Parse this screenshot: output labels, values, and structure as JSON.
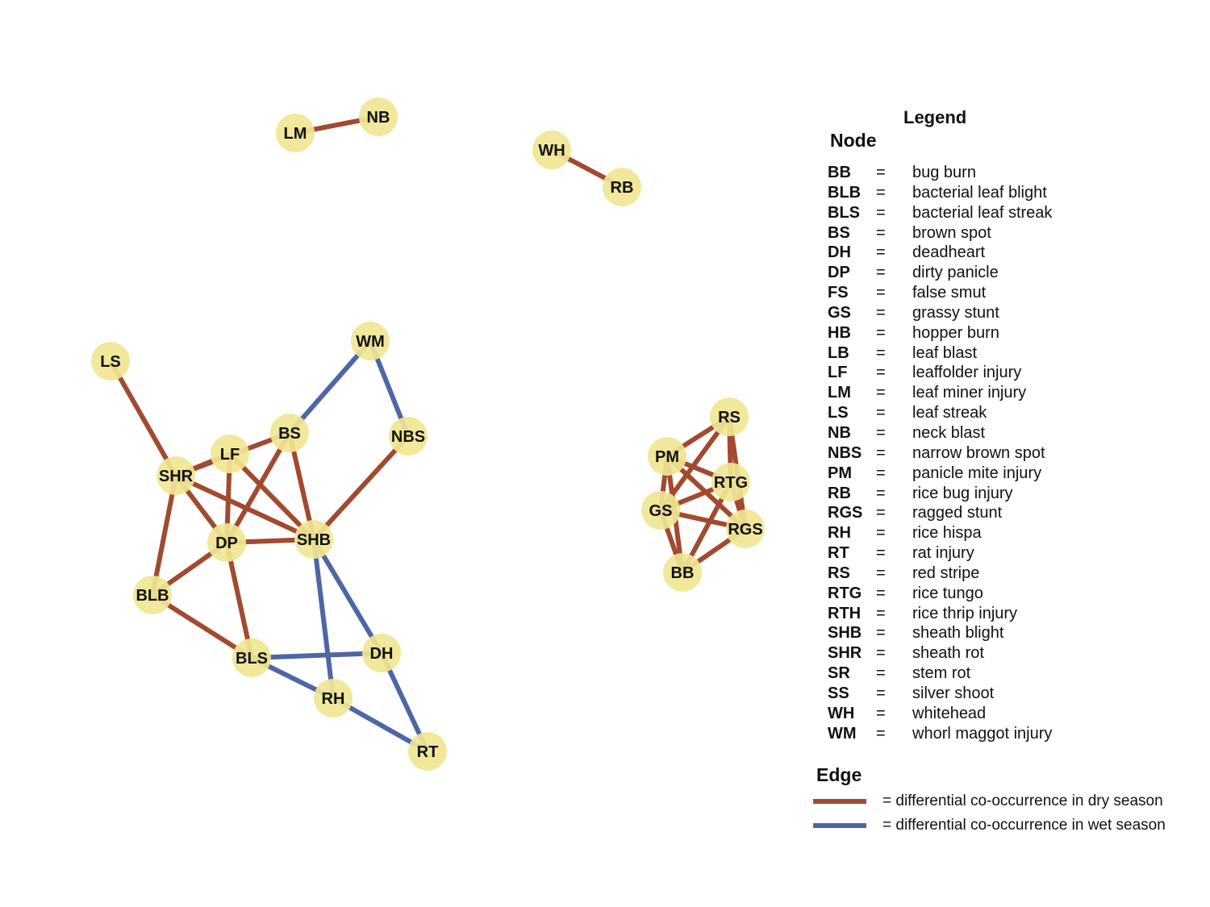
{
  "colors": {
    "dry_edge": "#a24a2f",
    "wet_edge": "#4f66a6",
    "node_fill": "#f0e694",
    "label": "#111111"
  },
  "nodes": [
    {
      "id": "LM"
    },
    {
      "id": "NB"
    },
    {
      "id": "WH"
    },
    {
      "id": "RB"
    },
    {
      "id": "LS"
    },
    {
      "id": "WM"
    },
    {
      "id": "LF"
    },
    {
      "id": "BS"
    },
    {
      "id": "NBS"
    },
    {
      "id": "SHR"
    },
    {
      "id": "DP"
    },
    {
      "id": "SHB"
    },
    {
      "id": "BLB"
    },
    {
      "id": "BLS"
    },
    {
      "id": "DH"
    },
    {
      "id": "RH"
    },
    {
      "id": "RT"
    },
    {
      "id": "RS"
    },
    {
      "id": "PM"
    },
    {
      "id": "RTG"
    },
    {
      "id": "GS"
    },
    {
      "id": "RGS"
    },
    {
      "id": "BB"
    }
  ],
  "edges": [
    {
      "from": "LM",
      "to": "NB",
      "season": "dry"
    },
    {
      "from": "WH",
      "to": "RB",
      "season": "dry"
    },
    {
      "from": "LS",
      "to": "SHR",
      "season": "dry"
    },
    {
      "from": "SHR",
      "to": "LF",
      "season": "dry"
    },
    {
      "from": "SHR",
      "to": "BS",
      "season": "dry"
    },
    {
      "from": "SHR",
      "to": "DP",
      "season": "dry"
    },
    {
      "from": "SHR",
      "to": "SHB",
      "season": "dry"
    },
    {
      "from": "SHR",
      "to": "BLB",
      "season": "dry"
    },
    {
      "from": "LF",
      "to": "DP",
      "season": "dry"
    },
    {
      "from": "LF",
      "to": "SHB",
      "season": "dry"
    },
    {
      "from": "BS",
      "to": "DP",
      "season": "dry"
    },
    {
      "from": "BS",
      "to": "SHB",
      "season": "dry"
    },
    {
      "from": "NBS",
      "to": "SHB",
      "season": "dry"
    },
    {
      "from": "DP",
      "to": "SHB",
      "season": "dry"
    },
    {
      "from": "DP",
      "to": "BLB",
      "season": "dry"
    },
    {
      "from": "DP",
      "to": "BLS",
      "season": "dry"
    },
    {
      "from": "BLB",
      "to": "BLS",
      "season": "dry"
    },
    {
      "from": "WM",
      "to": "BS",
      "season": "wet"
    },
    {
      "from": "WM",
      "to": "NBS",
      "season": "wet"
    },
    {
      "from": "SHB",
      "to": "DH",
      "season": "wet"
    },
    {
      "from": "SHB",
      "to": "RH",
      "season": "wet"
    },
    {
      "from": "BLS",
      "to": "DH",
      "season": "wet"
    },
    {
      "from": "BLS",
      "to": "RH",
      "season": "wet"
    },
    {
      "from": "RH",
      "to": "RT",
      "season": "wet"
    },
    {
      "from": "DH",
      "to": "RT",
      "season": "wet"
    },
    {
      "from": "RS",
      "to": "RTG",
      "season": "dry"
    },
    {
      "from": "RS",
      "to": "RGS",
      "season": "dry"
    },
    {
      "from": "RS",
      "to": "GS",
      "season": "dry"
    },
    {
      "from": "PM",
      "to": "RGS",
      "season": "dry"
    },
    {
      "from": "PM",
      "to": "BB",
      "season": "dry"
    },
    {
      "from": "PM",
      "to": "GS",
      "season": "dry"
    },
    {
      "from": "PM",
      "to": "RS",
      "season": "dry"
    },
    {
      "from": "PM",
      "to": "RTG",
      "season": "dry"
    },
    {
      "from": "GS",
      "to": "RTG",
      "season": "dry"
    },
    {
      "from": "GS",
      "to": "RGS",
      "season": "dry"
    },
    {
      "from": "GS",
      "to": "BB",
      "season": "dry"
    },
    {
      "from": "BB",
      "to": "RTG",
      "season": "dry"
    },
    {
      "from": "BB",
      "to": "RGS",
      "season": "dry"
    },
    {
      "from": "RTG",
      "to": "RGS",
      "season": "dry"
    }
  ],
  "legend": {
    "title": "Legend",
    "node_heading": "Node",
    "edge_heading": "Edge",
    "equals": "=",
    "entries": [
      {
        "abbr": "BB",
        "name": "bug burn"
      },
      {
        "abbr": "BLB",
        "name": "bacterial leaf blight"
      },
      {
        "abbr": "BLS",
        "name": "bacterial leaf streak"
      },
      {
        "abbr": "BS",
        "name": "brown spot"
      },
      {
        "abbr": "DH",
        "name": "deadheart"
      },
      {
        "abbr": "DP",
        "name": "dirty panicle"
      },
      {
        "abbr": "FS",
        "name": "false smut"
      },
      {
        "abbr": "GS",
        "name": "grassy stunt"
      },
      {
        "abbr": "HB",
        "name": "hopper burn"
      },
      {
        "abbr": "LB",
        "name": "leaf blast"
      },
      {
        "abbr": "LF",
        "name": "leaffolder injury"
      },
      {
        "abbr": "LM",
        "name": "leaf miner injury"
      },
      {
        "abbr": "LS",
        "name": "leaf streak"
      },
      {
        "abbr": "NB",
        "name": "neck blast"
      },
      {
        "abbr": "NBS",
        "name": "narrow brown spot"
      },
      {
        "abbr": "PM",
        "name": "panicle mite injury"
      },
      {
        "abbr": "RB",
        "name": "rice bug injury"
      },
      {
        "abbr": "RGS",
        "name": "ragged stunt"
      },
      {
        "abbr": "RH",
        "name": "rice hispa"
      },
      {
        "abbr": "RT",
        "name": "rat injury"
      },
      {
        "abbr": "RS",
        "name": "red stripe"
      },
      {
        "abbr": "RTG",
        "name": "rice tungo"
      },
      {
        "abbr": "RTH",
        "name": "rice thrip injury"
      },
      {
        "abbr": "SHB",
        "name": "sheath blight"
      },
      {
        "abbr": "SHR",
        "name": "sheath rot"
      },
      {
        "abbr": "SR",
        "name": "stem rot"
      },
      {
        "abbr": "SS",
        "name": "silver shoot"
      },
      {
        "abbr": "WH",
        "name": "whitehead"
      },
      {
        "abbr": "WM",
        "name": "whorl maggot injury"
      }
    ],
    "edge_items": [
      {
        "season": "dry",
        "label": "= differential co-occurrence in dry season"
      },
      {
        "season": "wet",
        "label": "= differential co-occurrence in wet season"
      }
    ]
  }
}
